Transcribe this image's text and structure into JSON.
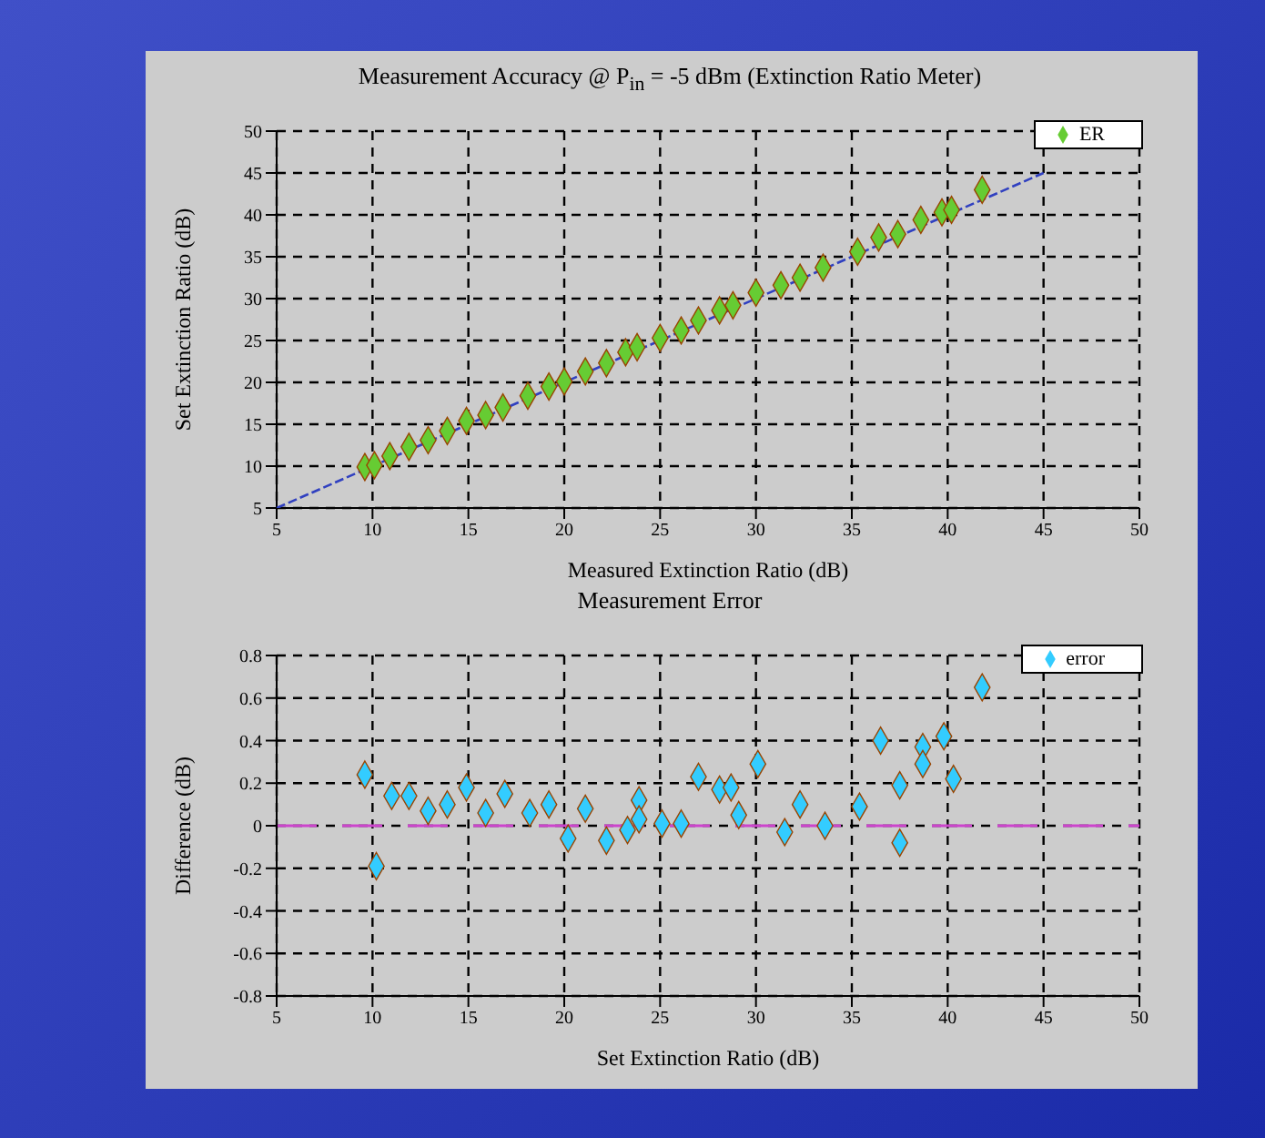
{
  "chart_data": [
    {
      "type": "scatter",
      "title": "Measurement Accuracy @ P$_{in}$ = -5 dBm (Extinction Ratio Meter)",
      "xlabel": "Measured Extinction Ratio (dB)",
      "ylabel": "Set Extinction Ratio (dB)",
      "xlim": [
        5,
        50
      ],
      "xticks": [
        5,
        10,
        15,
        20,
        25,
        30,
        35,
        40,
        45,
        50
      ],
      "ylim": [
        5,
        50
      ],
      "yticks": [
        5,
        10,
        15,
        20,
        25,
        30,
        35,
        40,
        45,
        50
      ],
      "grid": true,
      "legend": "top right",
      "marker": "diamond",
      "series": [
        {
          "type": "line",
          "color": "#3040c0",
          "line_style": "dashed",
          "marker": "none",
          "x": [
            5,
            45
          ],
          "values": [
            5,
            45
          ]
        },
        {
          "name": "ER",
          "color": "#66cc33",
          "x": [
            9.6,
            10.1,
            10.9,
            11.9,
            12.9,
            13.9,
            14.9,
            15.9,
            16.8,
            18.1,
            19.2,
            20.0,
            21.1,
            22.2,
            23.2,
            23.8,
            25.0,
            26.1,
            27.0,
            28.1,
            28.8,
            30.0,
            31.3,
            32.3,
            33.5,
            35.3,
            36.4,
            37.4,
            38.6,
            39.7,
            40.2,
            41.8
          ],
          "values": [
            9.9,
            10.1,
            11.2,
            12.3,
            13.1,
            14.2,
            15.4,
            16.1,
            17.0,
            18.4,
            19.5,
            20.1,
            21.3,
            22.3,
            23.6,
            24.2,
            25.3,
            26.2,
            27.4,
            28.6,
            29.2,
            30.7,
            31.6,
            32.5,
            33.7,
            35.6,
            37.3,
            37.7,
            39.4,
            40.3,
            40.6,
            43.0
          ]
        }
      ]
    },
    {
      "type": "scatter",
      "title": "Measurement Error",
      "xlabel": "Set Extinction Ratio (dB)",
      "ylabel": "Difference (dB)",
      "xlim": [
        5,
        50
      ],
      "xticks": [
        5,
        10,
        15,
        20,
        25,
        30,
        35,
        40,
        45,
        50
      ],
      "ylim": [
        -0.8,
        0.8
      ],
      "yticks": [
        -0.8,
        -0.6,
        -0.4,
        -0.2,
        0,
        0.2,
        0.4,
        0.6,
        0.8
      ],
      "grid": true,
      "legend": "top right",
      "marker": "diamond",
      "ref_lines": [
        {
          "axis": "y",
          "value": 0,
          "color": "#cc44cc",
          "line_style": "dashed"
        }
      ],
      "series": [
        {
          "name": "error",
          "color": "#33ccff",
          "x": [
            9.6,
            10.2,
            11.0,
            11.9,
            12.9,
            13.9,
            14.9,
            15.9,
            16.9,
            18.2,
            19.2,
            20.2,
            21.1,
            22.2,
            23.3,
            23.9,
            23.9,
            25.1,
            26.1,
            27.0,
            28.1,
            28.7,
            29.1,
            30.1,
            31.5,
            32.3,
            33.6,
            35.4,
            36.5,
            37.5,
            37.5,
            38.7,
            38.7,
            39.8,
            40.3,
            41.8
          ],
          "values": [
            0.24,
            -0.19,
            0.14,
            0.14,
            0.07,
            0.1,
            0.18,
            0.06,
            0.15,
            0.06,
            0.1,
            -0.06,
            0.08,
            -0.07,
            -0.02,
            0.12,
            0.03,
            0.01,
            0.01,
            0.23,
            0.17,
            0.18,
            0.05,
            0.29,
            -0.03,
            0.1,
            0.0,
            0.09,
            0.4,
            0.19,
            -0.08,
            0.37,
            0.29,
            0.42,
            0.22,
            0.65
          ]
        }
      ]
    }
  ]
}
